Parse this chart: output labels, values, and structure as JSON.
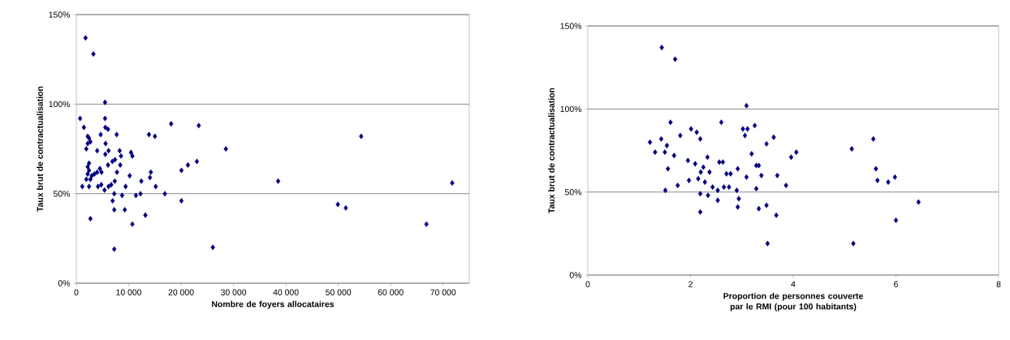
{
  "chart_data": [
    {
      "type": "scatter",
      "xlabel": "Nombre de foyers allocataires",
      "ylabel": "Taux brut de contractualisation",
      "color": "#000080",
      "marker": "diamond",
      "grid": "y",
      "xlim": [
        0,
        75000
      ],
      "ylim": [
        0,
        150
      ],
      "xticks": [
        0,
        {
          "value": 10000,
          "label": "10 000"
        },
        {
          "value": 20000,
          "label": "20 000"
        },
        {
          "value": 30000,
          "label": "30 000"
        },
        {
          "value": 40000,
          "label": "40 000"
        },
        {
          "value": 50000,
          "label": "50 000"
        },
        {
          "value": 60000,
          "label": "60 000"
        },
        {
          "value": 70000,
          "label": "70 000"
        }
      ],
      "yticks": [
        {
          "value": 0,
          "label": "0%"
        },
        {
          "value": 50,
          "label": "50%"
        },
        {
          "value": 100,
          "label": "100%"
        },
        {
          "value": 150,
          "label": "150%"
        }
      ],
      "x": [
        1760,
        3260,
        5480,
        720,
        5480,
        1450,
        5530,
        6050,
        4650,
        7700,
        2170,
        2430,
        2690,
        5580,
        2170,
        1910,
        3980,
        6150,
        5530,
        8270,
        8530,
        10440,
        10700,
        18100,
        23370,
        13860,
        15000,
        28540,
        23010,
        21300,
        20060,
        14220,
        14060,
        10180,
        7760,
        8380,
        6050,
        6880,
        7390,
        2430,
        2170,
        2430,
        2170,
        2950,
        3460,
        3980,
        4500,
        4810,
        2690,
        1910,
        1140,
        2430,
        4140,
        4760,
        5380,
        6150,
        6670,
        7340,
        9410,
        12410,
        15150,
        7240,
        8740,
        11370,
        12250,
        16900,
        20060,
        6930,
        7240,
        9250,
        2690,
        13180,
        10700,
        7240,
        26060,
        38520,
        54370,
        49920,
        51430,
        66820,
        71740
      ],
      "values": [
        137,
        128,
        101,
        92,
        92,
        87,
        87,
        86,
        83,
        83,
        82,
        81,
        79,
        78,
        78,
        75,
        74,
        74,
        72,
        74,
        71,
        73,
        71,
        89,
        88,
        83,
        82,
        75,
        68,
        66,
        63,
        62,
        59,
        60,
        62,
        66,
        66,
        68,
        69,
        67,
        65,
        63,
        61,
        60,
        61,
        62,
        64,
        62,
        58,
        58,
        54,
        54,
        54,
        55,
        52,
        54,
        55,
        57,
        54,
        57,
        54,
        50,
        49,
        49,
        50,
        50,
        46,
        46,
        41,
        41,
        36,
        38,
        33,
        19,
        20,
        57,
        82,
        44,
        42,
        33,
        56
      ]
    },
    {
      "type": "scatter",
      "xlabel": "Proportion de personnes couverte par le RMI (pour 100 habitants)",
      "ylabel": "Taux brut de contractualisation",
      "color": "#000080",
      "marker": "diamond",
      "grid": "y",
      "xlim": [
        0,
        8
      ],
      "ylim": [
        0,
        150
      ],
      "xticks": [
        0,
        2,
        4,
        6,
        8
      ],
      "yticks": [
        {
          "value": 0,
          "label": "0%"
        },
        {
          "value": 50,
          "label": "50%"
        },
        {
          "value": 100,
          "label": "100%"
        },
        {
          "value": 150,
          "label": "150%"
        }
      ],
      "x": [
        1.44,
        1.7,
        3.09,
        1.61,
        2.6,
        2.01,
        2.12,
        2.19,
        3.02,
        3.11,
        3.25,
        3.06,
        3.62,
        3.48,
        1.21,
        1.43,
        1.8,
        1.54,
        1.31,
        1.5,
        1.68,
        1.56,
        3.19,
        2.33,
        1.95,
        2.09,
        2.56,
        2.63,
        3.28,
        3.33,
        2.25,
        2.37,
        2.2,
        2.7,
        2.78,
        2.92,
        3.38,
        3.69,
        3.09,
        2.15,
        2.28,
        2.43,
        2.65,
        2.75,
        1.97,
        1.75,
        3.86,
        3.28,
        1.51,
        2.53,
        2.9,
        2.19,
        2.34,
        2.94,
        2.53,
        2.92,
        3.33,
        3.48,
        3.67,
        2.19,
        3.5,
        3.96,
        4.06,
        5.14,
        5.56,
        5.61,
        5.64,
        5.85,
        5.98,
        6.44,
        6.0,
        5.17
      ],
      "values": [
        137,
        130,
        102,
        92,
        92,
        88,
        86,
        82,
        88,
        88,
        90,
        84,
        83,
        79,
        80,
        82,
        84,
        78,
        74,
        74,
        72,
        64,
        73,
        71,
        69,
        67,
        68,
        68,
        66,
        66,
        65,
        62,
        62,
        61,
        61,
        64,
        60,
        60,
        59,
        58,
        56,
        53,
        53,
        53,
        57,
        54,
        54,
        52,
        51,
        51,
        51,
        49,
        48,
        46,
        45,
        41,
        40,
        42,
        36,
        38,
        19,
        71,
        74,
        76,
        82,
        64,
        57,
        56,
        59,
        44,
        33,
        19
      ]
    }
  ]
}
